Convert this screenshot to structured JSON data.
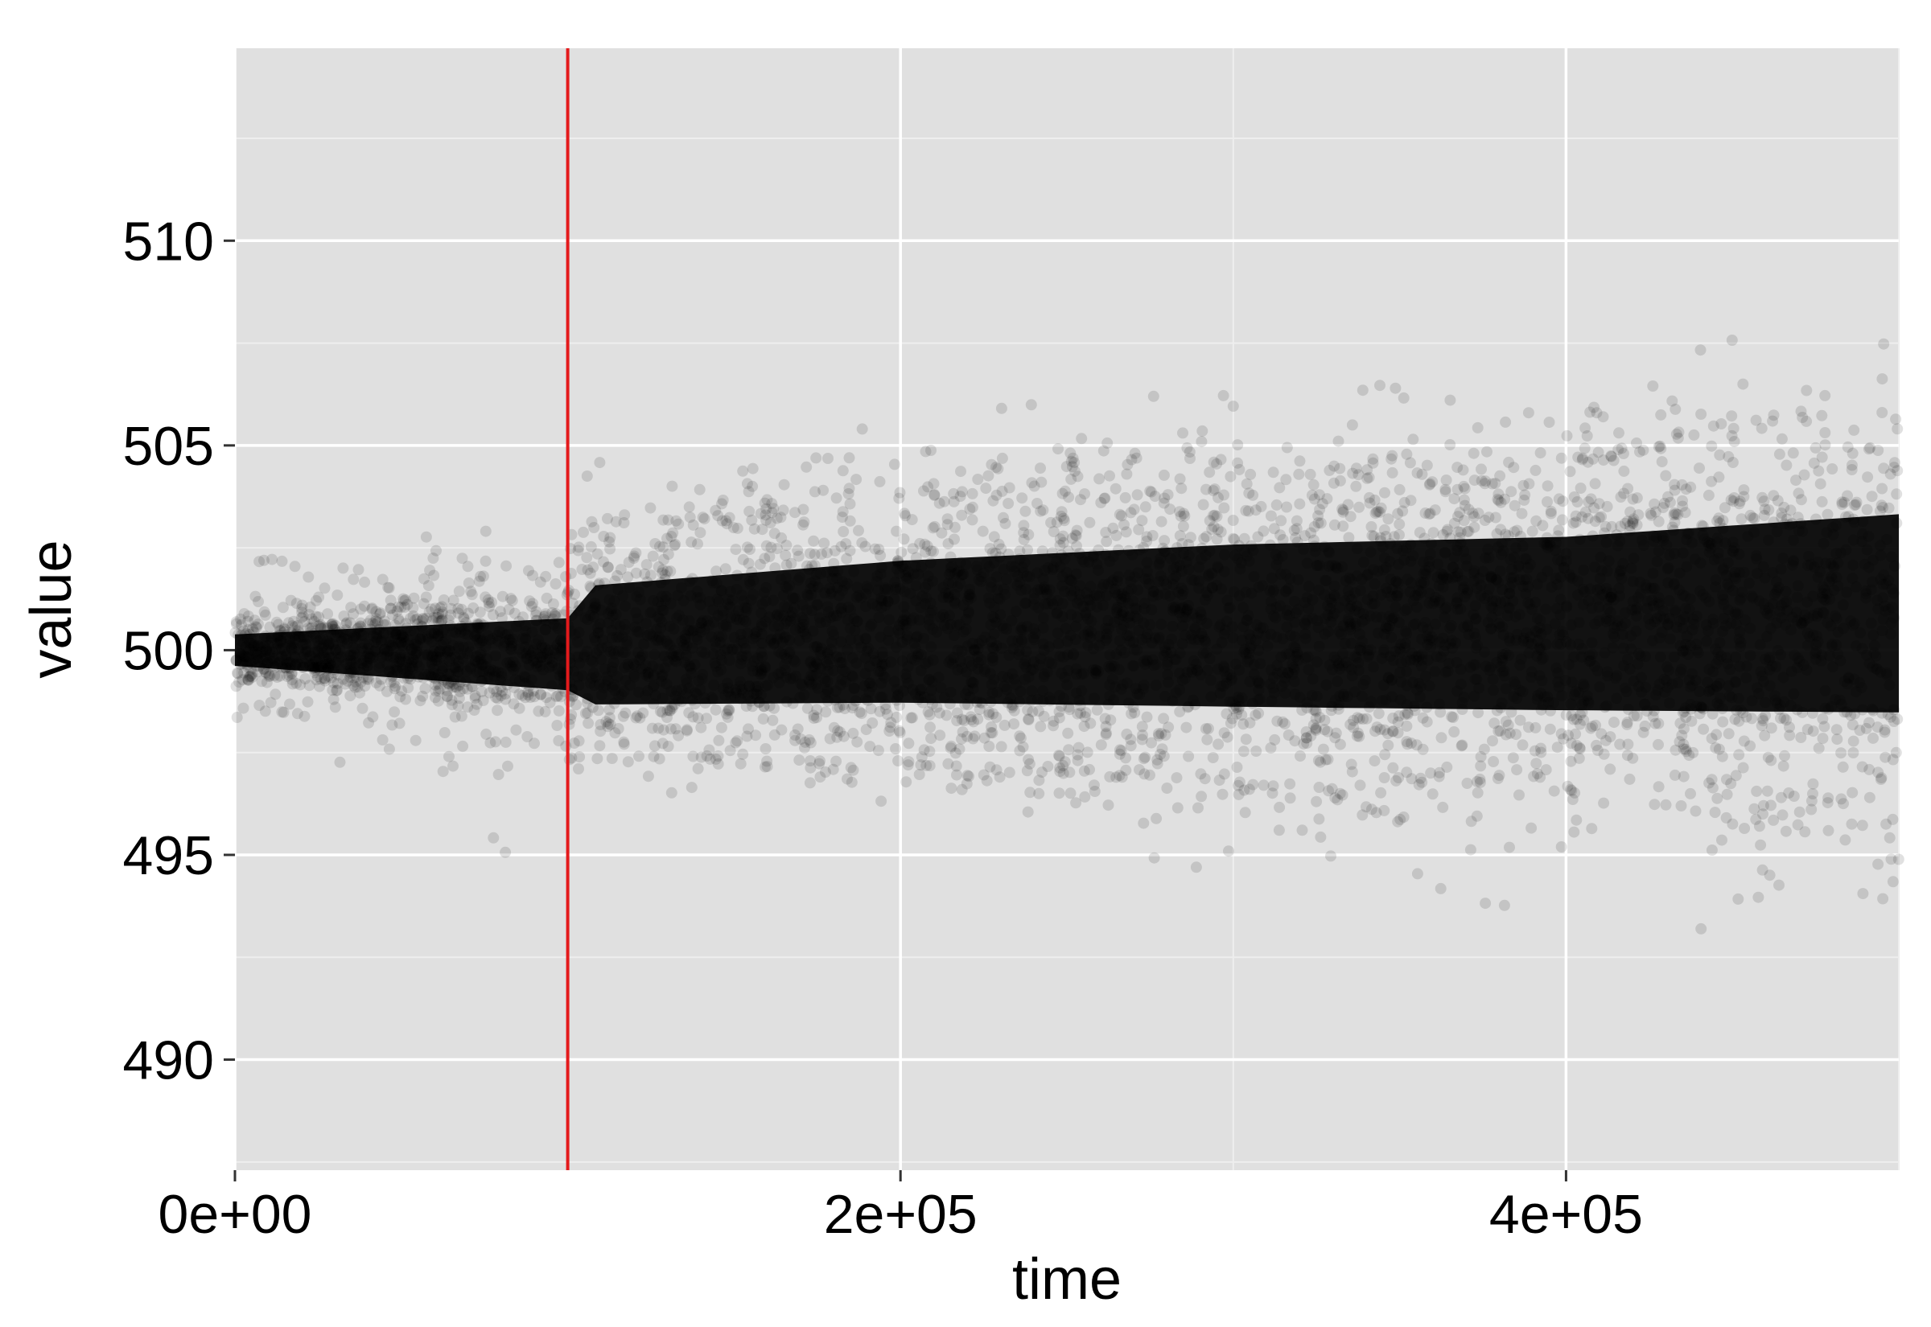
{
  "chart_data": {
    "type": "scatter",
    "title": "",
    "xlabel": "time",
    "ylabel": "value",
    "xlim": [
      0,
      500000
    ],
    "ylim": [
      487.3,
      514.7
    ],
    "x_ticks": [
      0,
      200000,
      400000
    ],
    "x_tick_labels": [
      "0e+00",
      "2e+05",
      "4e+05"
    ],
    "y_ticks": [
      490,
      495,
      500,
      505,
      510
    ],
    "y_tick_labels": [
      "490",
      "495",
      "500",
      "505",
      "510"
    ],
    "grid": true,
    "legend": "none",
    "point_color": "#000000",
    "point_alpha": 0.12,
    "reference_line": {
      "orientation": "vertical",
      "x": 100000,
      "color": "#e41a1c"
    },
    "spread_profile": {
      "x": [
        0,
        100000,
        100001,
        200000,
        300000,
        400000,
        500000
      ],
      "core_min": [
        499.3,
        498.3,
        497.5,
        497.3,
        497.0,
        496.8,
        496.5
      ],
      "core_max": [
        500.7,
        501.5,
        502.7,
        503.6,
        504.2,
        504.5,
        505.3
      ],
      "outer_min": [
        497.5,
        494.5,
        496.5,
        496.3,
        494.5,
        493.6,
        492.6
      ],
      "outer_max": [
        502.5,
        503.5,
        504.5,
        505.6,
        506.6,
        508.3,
        507.9
      ]
    }
  },
  "colors": {
    "panel_background": "#e0e0e0",
    "grid_major": "#ffffff",
    "grid_minor": "#eeeeee",
    "axis_tick": "#333333",
    "reference_line": "#e41a1c"
  }
}
